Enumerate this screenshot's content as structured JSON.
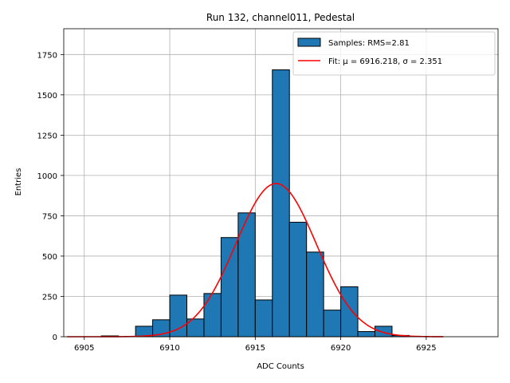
{
  "chart_data": {
    "type": "histogram",
    "title": "Run 132, channel011, Pedestal",
    "xlabel": "ADC Counts",
    "ylabel": "Entries",
    "xlim": [
      6903.8,
      6929.2
    ],
    "ylim": [
      0,
      1910
    ],
    "xticks": [
      6905,
      6910,
      6915,
      6920,
      6925
    ],
    "yticks": [
      0,
      250,
      500,
      750,
      1000,
      1250,
      1500,
      1750
    ],
    "grid": true,
    "bar_color": "#1f77b4",
    "fit_color": "#ff0000",
    "bin_width": 1,
    "bins": [
      {
        "x0": 6904,
        "count": 0
      },
      {
        "x0": 6905,
        "count": 0
      },
      {
        "x0": 6906,
        "count": 5
      },
      {
        "x0": 6907,
        "count": 0
      },
      {
        "x0": 6908,
        "count": 65
      },
      {
        "x0": 6909,
        "count": 105
      },
      {
        "x0": 6910,
        "count": 258
      },
      {
        "x0": 6911,
        "count": 110
      },
      {
        "x0": 6912,
        "count": 268
      },
      {
        "x0": 6913,
        "count": 615
      },
      {
        "x0": 6914,
        "count": 768
      },
      {
        "x0": 6915,
        "count": 228
      },
      {
        "x0": 6916,
        "count": 1655
      },
      {
        "x0": 6917,
        "count": 710
      },
      {
        "x0": 6918,
        "count": 525
      },
      {
        "x0": 6919,
        "count": 165
      },
      {
        "x0": 6920,
        "count": 310
      },
      {
        "x0": 6921,
        "count": 32
      },
      {
        "x0": 6922,
        "count": 65
      },
      {
        "x0": 6923,
        "count": 8
      },
      {
        "x0": 6924,
        "count": 0
      }
    ],
    "fit": {
      "type": "gaussian",
      "mu": 6916.218,
      "sigma": 2.351,
      "amplitude": 950,
      "x_range": [
        6904,
        6926
      ]
    },
    "legend": {
      "placement": "upper right",
      "entries": [
        "Samples: RMS=2.81",
        "Fit: μ = 6916.218, σ = 2.351"
      ]
    }
  }
}
